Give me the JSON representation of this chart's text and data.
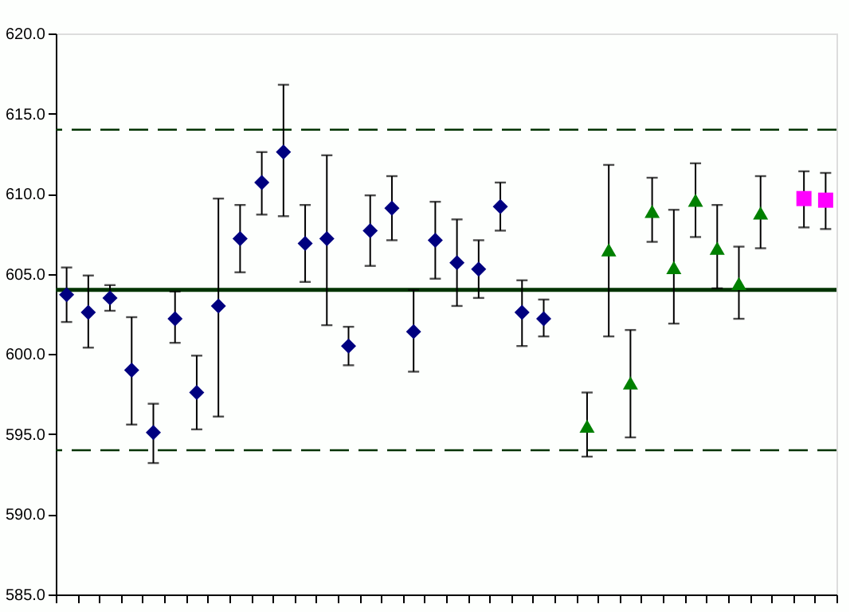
{
  "chart_data": {
    "type": "scatter",
    "categories": [
      null,
      null,
      null,
      null,
      null,
      null,
      null,
      null,
      null,
      null,
      null,
      null,
      null,
      null,
      null,
      null,
      null,
      null,
      null,
      null,
      null,
      null,
      null,
      null,
      null,
      null,
      null,
      null,
      null,
      null,
      null,
      null,
      null,
      null,
      null,
      null
    ],
    "series": [
      {
        "color": "#000080",
        "marker": "diamond",
        "values": [
          603.7,
          602.6,
          603.5,
          599.0,
          595.1,
          602.2,
          597.6,
          603.0,
          607.2,
          610.7,
          612.6,
          606.9,
          607.2,
          600.5,
          607.7,
          609.1,
          601.4,
          607.1,
          605.7,
          605.3,
          609.2,
          602.6,
          602.2,
          null,
          null,
          null,
          null,
          null,
          null,
          null,
          null,
          null,
          null,
          null,
          null,
          null
        ],
        "errors": [
          [
            602.0,
            605.4
          ],
          [
            600.4,
            604.9
          ],
          [
            602.7,
            604.3
          ],
          [
            595.6,
            602.3
          ],
          [
            593.2,
            596.9
          ],
          [
            600.7,
            603.9
          ],
          [
            595.3,
            599.9
          ],
          [
            596.1,
            609.7
          ],
          [
            605.1,
            609.3
          ],
          [
            608.7,
            612.6
          ],
          [
            608.6,
            616.8
          ],
          [
            604.5,
            609.3
          ],
          [
            601.8,
            612.4
          ],
          [
            599.3,
            601.7
          ],
          [
            605.5,
            609.9
          ],
          [
            607.1,
            611.1
          ],
          [
            598.9,
            604.0
          ],
          [
            604.7,
            609.5
          ],
          [
            603.0,
            608.4
          ],
          [
            603.5,
            607.1
          ],
          [
            607.7,
            610.7
          ],
          [
            600.5,
            604.6
          ],
          [
            601.1,
            603.4
          ],
          null,
          null,
          null,
          null,
          null,
          null,
          null,
          null,
          null,
          null,
          null,
          null,
          null
        ]
      },
      {
        "color": "#008000",
        "marker": "triangle",
        "values": [
          null,
          null,
          null,
          null,
          null,
          null,
          null,
          null,
          null,
          null,
          null,
          null,
          null,
          null,
          null,
          null,
          null,
          null,
          null,
          null,
          null,
          null,
          null,
          null,
          595.5,
          606.5,
          598.2,
          608.9,
          605.4,
          609.6,
          606.6,
          604.4,
          608.8,
          null,
          null,
          null
        ],
        "errors": [
          null,
          null,
          null,
          null,
          null,
          null,
          null,
          null,
          null,
          null,
          null,
          null,
          null,
          null,
          null,
          null,
          null,
          null,
          null,
          null,
          null,
          null,
          null,
          null,
          [
            593.6,
            597.6
          ],
          [
            601.1,
            611.8
          ],
          [
            594.8,
            601.5
          ],
          [
            607.0,
            611.0
          ],
          [
            601.9,
            609.0
          ],
          [
            607.3,
            611.9
          ],
          [
            604.1,
            609.3
          ],
          [
            602.2,
            606.7
          ],
          [
            606.6,
            611.1
          ],
          null,
          null,
          null
        ]
      },
      {
        "color": "#ff00ff",
        "marker": "square",
        "values": [
          null,
          null,
          null,
          null,
          null,
          null,
          null,
          null,
          null,
          null,
          null,
          null,
          null,
          null,
          null,
          null,
          null,
          null,
          null,
          null,
          null,
          null,
          null,
          null,
          null,
          null,
          null,
          null,
          null,
          null,
          null,
          null,
          null,
          null,
          609.7,
          609.6
        ],
        "errors": [
          null,
          null,
          null,
          null,
          null,
          null,
          null,
          null,
          null,
          null,
          null,
          null,
          null,
          null,
          null,
          null,
          null,
          null,
          null,
          null,
          null,
          null,
          null,
          null,
          null,
          null,
          null,
          null,
          null,
          null,
          null,
          null,
          null,
          null,
          [
            607.9,
            611.4
          ],
          [
            607.8,
            611.3
          ]
        ]
      }
    ],
    "ylim": [
      585,
      620
    ],
    "yticks": [
      {
        "value": 585,
        "label": "585.0"
      },
      {
        "value": 590,
        "label": "590.0"
      },
      {
        "value": 595,
        "label": "595.0"
      },
      {
        "value": 600,
        "label": "600.0"
      },
      {
        "value": 605,
        "label": "605.0"
      },
      {
        "value": 610,
        "label": "610.0"
      },
      {
        "value": 615,
        "label": "615.0"
      },
      {
        "value": 620,
        "label": "620.0"
      }
    ],
    "ref_lines": [
      {
        "axis": "y",
        "value": 604.0,
        "color": "#003300",
        "line_style": "solid"
      },
      {
        "axis": "y",
        "value": 594.0,
        "color": "#003300",
        "line_style": "dashed"
      },
      {
        "axis": "y",
        "value": 614.0,
        "color": "#003300",
        "line_style": "dashed"
      }
    ],
    "grid": false,
    "tick_labels": "y"
  }
}
